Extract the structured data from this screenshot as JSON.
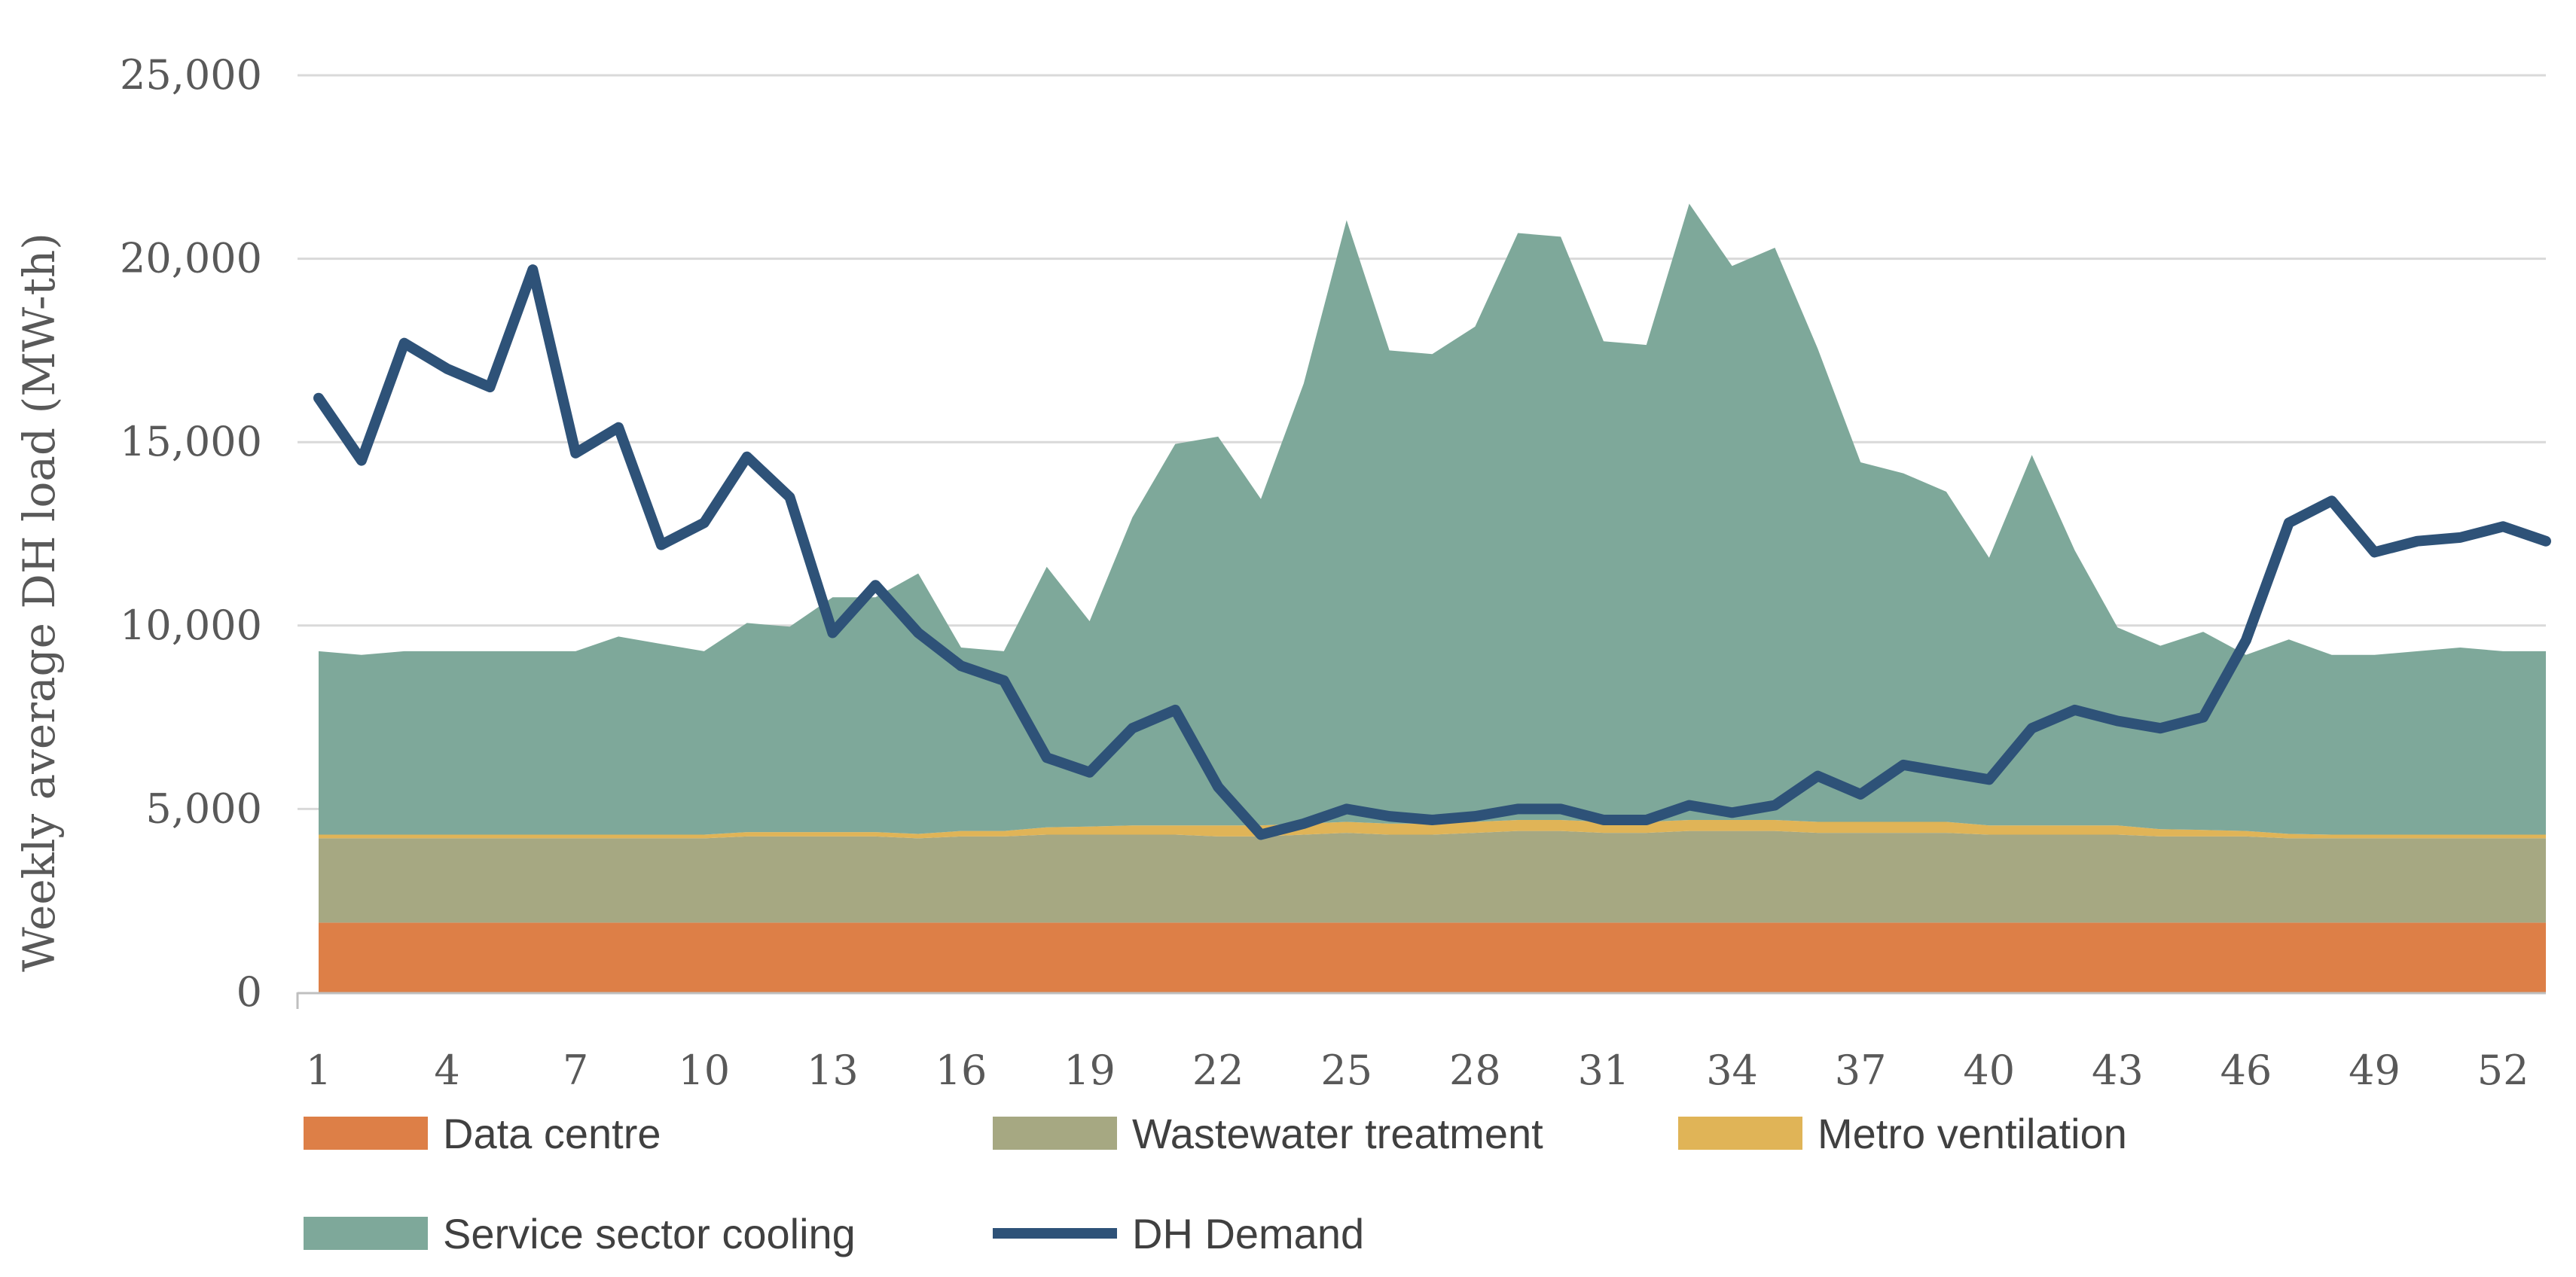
{
  "chart_data": {
    "type": "area",
    "title": "",
    "xlabel": "",
    "ylabel": "Weekly average DH load (MW-th)",
    "ylim": [
      0,
      25000
    ],
    "yticks": [
      0,
      5000,
      10000,
      15000,
      20000,
      25000
    ],
    "ytick_labels": [
      "0",
      "5,000",
      "10,000",
      "15,000",
      "20,000",
      "25,000"
    ],
    "xlim": [
      1,
      53
    ],
    "xtick_labels": [
      "1",
      "4",
      "7",
      "10",
      "13",
      "16",
      "19",
      "22",
      "25",
      "28",
      "31",
      "34",
      "37",
      "40",
      "43",
      "46",
      "49",
      "52"
    ],
    "grid": true,
    "legend_position": "bottom",
    "stacked": true,
    "x": [
      1,
      2,
      3,
      4,
      5,
      6,
      7,
      8,
      9,
      10,
      11,
      12,
      13,
      14,
      15,
      16,
      17,
      18,
      19,
      20,
      21,
      22,
      23,
      24,
      25,
      26,
      27,
      28,
      29,
      30,
      31,
      32,
      33,
      34,
      35,
      36,
      37,
      38,
      39,
      40,
      41,
      42,
      43,
      44,
      45,
      46,
      47,
      48,
      49,
      50,
      51,
      52,
      53
    ],
    "series": [
      {
        "name": "Data centre",
        "kind": "area",
        "color": "#dd7f47",
        "values": [
          1900,
          1900,
          1900,
          1900,
          1900,
          1900,
          1900,
          1900,
          1900,
          1900,
          1900,
          1900,
          1900,
          1900,
          1900,
          1900,
          1900,
          1900,
          1900,
          1900,
          1900,
          1900,
          1900,
          1900,
          1900,
          1900,
          1900,
          1900,
          1900,
          1900,
          1900,
          1900,
          1900,
          1900,
          1900,
          1900,
          1900,
          1900,
          1900,
          1900,
          1900,
          1900,
          1900,
          1900,
          1900,
          1900,
          1900,
          1900,
          1900,
          1900,
          1900,
          1900,
          1900
        ]
      },
      {
        "name": "Wastewater treatment",
        "kind": "area",
        "color": "#a6a882",
        "values": [
          2300,
          2300,
          2300,
          2300,
          2300,
          2300,
          2300,
          2300,
          2300,
          2300,
          2350,
          2350,
          2350,
          2350,
          2300,
          2350,
          2350,
          2400,
          2400,
          2400,
          2400,
          2350,
          2350,
          2400,
          2450,
          2400,
          2400,
          2450,
          2500,
          2500,
          2450,
          2450,
          2500,
          2500,
          2500,
          2450,
          2450,
          2450,
          2450,
          2400,
          2400,
          2400,
          2400,
          2350,
          2350,
          2350,
          2300,
          2300,
          2300,
          2300,
          2300,
          2300,
          2300
        ]
      },
      {
        "name": "Metro ventilation",
        "kind": "area",
        "color": "#e0b457",
        "values": [
          100,
          100,
          100,
          100,
          100,
          100,
          100,
          100,
          100,
          100,
          120,
          120,
          120,
          120,
          120,
          150,
          150,
          200,
          220,
          250,
          250,
          300,
          300,
          300,
          300,
          300,
          300,
          300,
          300,
          300,
          300,
          300,
          300,
          300,
          300,
          300,
          300,
          300,
          300,
          250,
          250,
          250,
          250,
          200,
          180,
          150,
          120,
          100,
          100,
          100,
          100,
          100,
          100
        ]
      },
      {
        "name": "Service sector cooling",
        "kind": "area",
        "color": "#7ea89a",
        "values": [
          5000,
          4900,
          5000,
          5000,
          5000,
          5000,
          5000,
          5400,
          5200,
          5000,
          5700,
          5600,
          6400,
          6400,
          7100,
          5000,
          4900,
          7100,
          5600,
          8400,
          10400,
          10600,
          8900,
          12000,
          16400,
          12900,
          12800,
          13500,
          16000,
          15900,
          13100,
          13000,
          16800,
          15100,
          15600,
          12900,
          9800,
          9500,
          9000,
          7300,
          10100,
          7500,
          5400,
          5000,
          5400,
          4800,
          5300,
          4900,
          4900,
          5000,
          5100,
          5000,
          5000
        ]
      },
      {
        "name": "DH Demand",
        "kind": "line",
        "color": "#2e5278",
        "values": [
          16200,
          14500,
          17700,
          17000,
          16500,
          19700,
          14700,
          15400,
          12200,
          12800,
          14600,
          13500,
          9800,
          11100,
          9800,
          8900,
          8500,
          6400,
          6000,
          7200,
          7700,
          5600,
          4300,
          4600,
          5000,
          4800,
          4700,
          4800,
          5000,
          5000,
          4700,
          4700,
          5100,
          4900,
          5100,
          5900,
          5400,
          6200,
          6000,
          5800,
          7200,
          7700,
          7400,
          7200,
          7500,
          9600,
          12800,
          13400,
          12000,
          12300,
          12400,
          12700,
          12300
        ]
      }
    ]
  }
}
